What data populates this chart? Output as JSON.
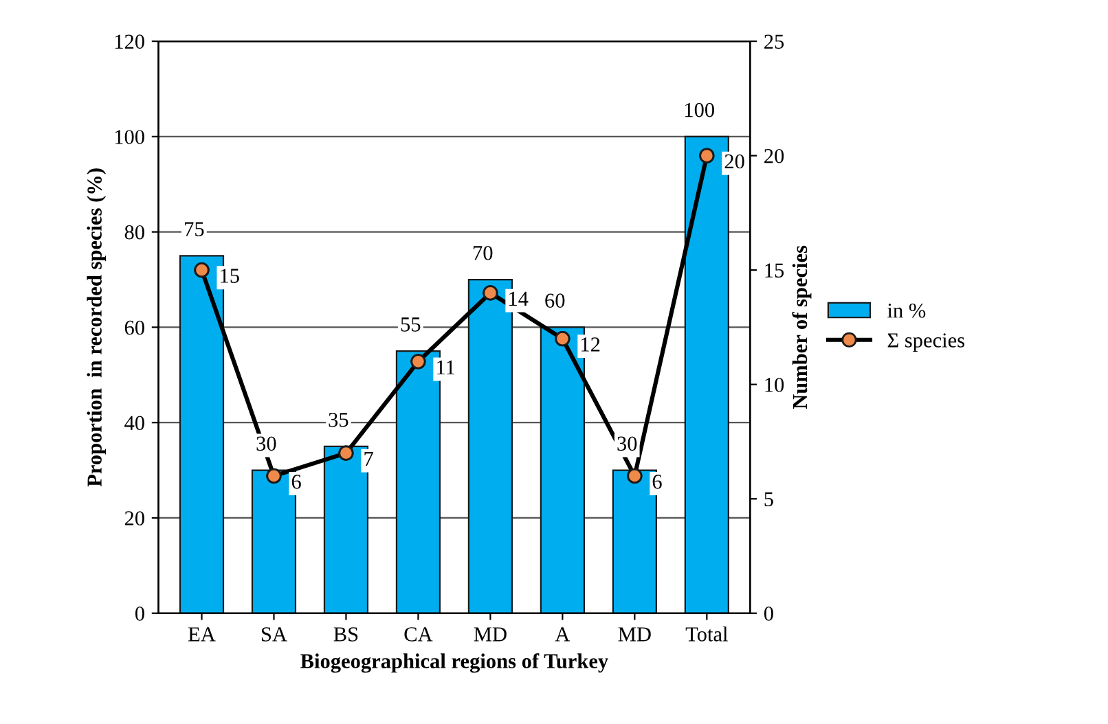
{
  "chart_data": {
    "type": "bar",
    "xlabel": "Biogeographical regions of Turkey",
    "ylabel": "Proportion  in recorded species (%)",
    "y2label": "Number of species",
    "categories": [
      "EA",
      "SA",
      "BS",
      "CA",
      "MD",
      "A",
      "MD",
      "Total"
    ],
    "series": [
      {
        "name": "in %",
        "color": "#00aeef",
        "values": [
          75,
          30,
          35,
          55,
          70,
          60,
          30,
          100
        ]
      },
      {
        "name": "Σ species",
        "type": "line",
        "axis": "y2",
        "color": "#000000",
        "colors": [
          "#f08a4b",
          "#f08a4b",
          "#f08a4b",
          "#f08a4b",
          "#f08a4b",
          "#f08a4b",
          "#f08a4b",
          "#f08a4b"
        ],
        "marker": "circle",
        "values": [
          15,
          6,
          7,
          11,
          14,
          12,
          6,
          20
        ]
      }
    ],
    "ylim": [
      0,
      120
    ],
    "yticks": [
      0,
      20,
      40,
      60,
      80,
      100,
      120
    ],
    "y2lim": [
      0,
      25
    ],
    "y2ticks": [
      0,
      5,
      10,
      15,
      20,
      25
    ],
    "grid": "y",
    "legend": "right",
    "data_labels": true
  }
}
